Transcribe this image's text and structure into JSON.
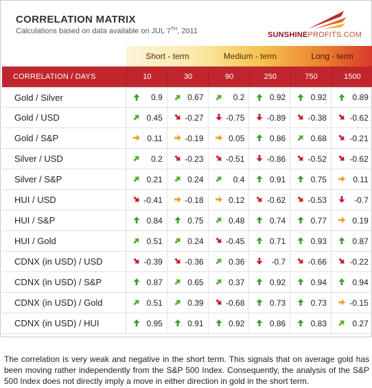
{
  "header": {
    "title": "CORRELATION MATRIX",
    "subtitle_prefix": "Calculations based on data available on  JUL 7",
    "subtitle_sup": "TH",
    "subtitle_suffix": ", 2011",
    "logo_part1": "SUNSHINE",
    "logo_part2": "PROFITS.COM"
  },
  "terms": [
    "Short - term",
    "Medium - term",
    "Long - term"
  ],
  "table": {
    "label_header": "CORRELATION / DAYS",
    "days": [
      "10",
      "30",
      "90",
      "250",
      "750",
      "1500"
    ],
    "rows": [
      {
        "pair": "Gold / Silver",
        "cells": [
          {
            "v": "0.9",
            "a": "up"
          },
          {
            "v": "0.67",
            "a": "ur"
          },
          {
            "v": "0.2",
            "a": "ur"
          },
          {
            "v": "0.92",
            "a": "up"
          },
          {
            "v": "0.92",
            "a": "up"
          },
          {
            "v": "0.89",
            "a": "up"
          }
        ]
      },
      {
        "pair": "Gold / USD",
        "cells": [
          {
            "v": "0.45",
            "a": "ur"
          },
          {
            "v": "-0.27",
            "a": "dr"
          },
          {
            "v": "-0.75",
            "a": "down"
          },
          {
            "v": "-0.89",
            "a": "down"
          },
          {
            "v": "-0.38",
            "a": "dr"
          },
          {
            "v": "-0.62",
            "a": "dr"
          }
        ]
      },
      {
        "pair": "Gold / S&P",
        "cells": [
          {
            "v": "0.11",
            "a": "right"
          },
          {
            "v": "-0.19",
            "a": "right"
          },
          {
            "v": "0.05",
            "a": "right"
          },
          {
            "v": "0.86",
            "a": "up"
          },
          {
            "v": "0.68",
            "a": "ur"
          },
          {
            "v": "-0.21",
            "a": "dr"
          }
        ]
      },
      {
        "pair": "Silver / USD",
        "cells": [
          {
            "v": "0.2",
            "a": "ur"
          },
          {
            "v": "-0.23",
            "a": "dr"
          },
          {
            "v": "-0.51",
            "a": "dr"
          },
          {
            "v": "-0.86",
            "a": "down"
          },
          {
            "v": "-0.52",
            "a": "dr"
          },
          {
            "v": "-0.62",
            "a": "dr"
          }
        ]
      },
      {
        "pair": "Silver / S&P",
        "cells": [
          {
            "v": "0.21",
            "a": "ur"
          },
          {
            "v": "0.24",
            "a": "ur"
          },
          {
            "v": "0.4",
            "a": "ur"
          },
          {
            "v": "0.91",
            "a": "up"
          },
          {
            "v": "0.75",
            "a": "up"
          },
          {
            "v": "0.11",
            "a": "right"
          }
        ]
      },
      {
        "pair": "HUI / USD",
        "cells": [
          {
            "v": "-0.41",
            "a": "dr"
          },
          {
            "v": "-0.18",
            "a": "right"
          },
          {
            "v": "0.12",
            "a": "right"
          },
          {
            "v": "-0.62",
            "a": "dr"
          },
          {
            "v": "-0.53",
            "a": "dr"
          },
          {
            "v": "-0.7",
            "a": "down"
          }
        ]
      },
      {
        "pair": "HUI / S&P",
        "cells": [
          {
            "v": "0.84",
            "a": "up"
          },
          {
            "v": "0.75",
            "a": "up"
          },
          {
            "v": "0.48",
            "a": "ur"
          },
          {
            "v": "0.74",
            "a": "up"
          },
          {
            "v": "0.77",
            "a": "up"
          },
          {
            "v": "0.19",
            "a": "right"
          }
        ]
      },
      {
        "pair": "HUI / Gold",
        "cells": [
          {
            "v": "0.51",
            "a": "ur"
          },
          {
            "v": "0.24",
            "a": "ur"
          },
          {
            "v": "-0.45",
            "a": "dr"
          },
          {
            "v": "0.71",
            "a": "up"
          },
          {
            "v": "0.93",
            "a": "up"
          },
          {
            "v": "0.87",
            "a": "up"
          }
        ]
      },
      {
        "pair": "CDNX (in USD) / USD",
        "cells": [
          {
            "v": "-0.39",
            "a": "dr"
          },
          {
            "v": "-0.36",
            "a": "dr"
          },
          {
            "v": "0.36",
            "a": "ur"
          },
          {
            "v": "-0.7",
            "a": "down"
          },
          {
            "v": "-0.66",
            "a": "dr"
          },
          {
            "v": "-0.22",
            "a": "dr"
          }
        ]
      },
      {
        "pair": "CDNX (in USD) / S&P",
        "cells": [
          {
            "v": "0.87",
            "a": "up"
          },
          {
            "v": "0.65",
            "a": "ur"
          },
          {
            "v": "0.37",
            "a": "ur"
          },
          {
            "v": "0.92",
            "a": "up"
          },
          {
            "v": "0.94",
            "a": "up"
          },
          {
            "v": "0.94",
            "a": "up"
          }
        ]
      },
      {
        "pair": "CDNX (in USD) / Gold",
        "cells": [
          {
            "v": "0.51",
            "a": "ur"
          },
          {
            "v": "0.39",
            "a": "ur"
          },
          {
            "v": "-0.68",
            "a": "dr"
          },
          {
            "v": "0.73",
            "a": "up"
          },
          {
            "v": "0.73",
            "a": "up"
          },
          {
            "v": "-0.15",
            "a": "right"
          }
        ]
      },
      {
        "pair": "CDNX (in USD) / HUI",
        "cells": [
          {
            "v": "0.95",
            "a": "up"
          },
          {
            "v": "0.91",
            "a": "up"
          },
          {
            "v": "0.92",
            "a": "up"
          },
          {
            "v": "0.86",
            "a": "up"
          },
          {
            "v": "0.83",
            "a": "up"
          },
          {
            "v": "0.27",
            "a": "ur"
          }
        ]
      }
    ]
  },
  "arrow_colors": {
    "up": "#3aa02c",
    "ur": "#58ad2a",
    "right": "#f0a020",
    "dr": "#c8202d",
    "down": "#c8202d"
  },
  "note": "The correlation is very weak and negative in the short term. This signals that on average gold has been moving rather independently from the S&P 500 Index. Consequently, the analysis of the S&P 500 Index does not directly imply a move in either direction in gold in the short term."
}
